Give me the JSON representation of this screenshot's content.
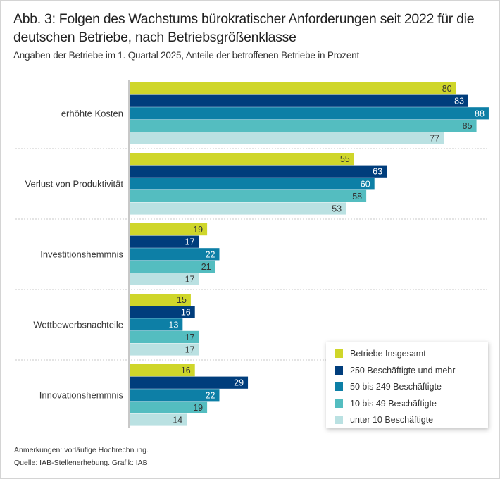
{
  "title": "Abb. 3: Folgen des Wachstums bürokratischer Anforderungen seit 2022 für die deutschen Betriebe, nach Betriebsgrößenklasse",
  "subtitle": "Angaben der Betriebe im 1. Quartal 2025, Anteile der betroffenen Betriebe in Prozent",
  "notes": {
    "line1": "Anmerkungen: vorläufige Hochrechnung.",
    "line2": "Quelle: IAB-Stellenerhebung. Grafik: IAB"
  },
  "chart_data": {
    "type": "bar",
    "orientation": "horizontal",
    "title": "Abb. 3: Folgen des Wachstums bürokratischer Anforderungen seit 2022 für die deutschen Betriebe, nach Betriebsgrößenklasse",
    "subtitle": "Angaben der Betriebe im 1. Quartal 2025, Anteile der betroffenen Betriebe in Prozent",
    "xlabel": "",
    "ylabel": "",
    "xlim": [
      0,
      90
    ],
    "grid": false,
    "legend_position": "bottom-right",
    "categories": [
      "erhöhte Kosten",
      "Verlust von Produktivität",
      "Investitionshemmnis",
      "Wettbewerbsnachteile",
      "Innovationshemmnis"
    ],
    "series": [
      {
        "name": "Betriebe Insgesamt",
        "color": "#cfd62a",
        "label_color": "#333333",
        "values": [
          80,
          55,
          19,
          15,
          16
        ]
      },
      {
        "name": "250 Beschäftigte und mehr",
        "color": "#003d7c",
        "label_color": "#ffffff",
        "values": [
          83,
          63,
          17,
          16,
          29
        ]
      },
      {
        "name": "50 bis 249 Beschäftigte",
        "color": "#0d7fa6",
        "label_color": "#ffffff",
        "values": [
          88,
          60,
          22,
          13,
          22
        ]
      },
      {
        "name": "10 bis 49 Beschäftigte",
        "color": "#54bdc0",
        "label_color": "#333333",
        "values": [
          85,
          58,
          21,
          17,
          19
        ]
      },
      {
        "name": "unter 10 Beschäftigte",
        "color": "#bae1e2",
        "label_color": "#333333",
        "values": [
          77,
          53,
          17,
          17,
          14
        ]
      }
    ]
  }
}
